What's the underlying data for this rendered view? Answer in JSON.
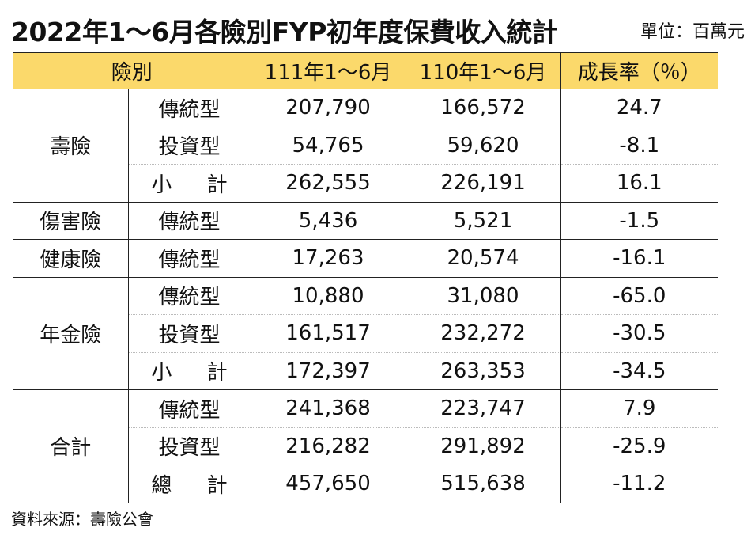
{
  "title": "2022年1～6月各險別FYP初年度保費收入統計",
  "unit": "單位：百萬元",
  "header": {
    "category": "險別",
    "col1": "111年1～6月",
    "col2": "110年1～6月",
    "col3": "成長率（％）"
  },
  "groups": [
    {
      "name": "壽險",
      "rows": [
        {
          "type": "傳統型",
          "v111": "207,790",
          "v110": "166,572",
          "growth": "24.7"
        },
        {
          "type": "投資型",
          "v111": "54,765",
          "v110": "59,620",
          "growth": "-8.1"
        },
        {
          "type": "小 計",
          "v111": "262,555",
          "v110": "226,191",
          "growth": "16.1"
        }
      ]
    },
    {
      "name": "傷害險",
      "rows": [
        {
          "type": "傳統型",
          "v111": "5,436",
          "v110": "5,521",
          "growth": "-1.5"
        }
      ]
    },
    {
      "name": "健康險",
      "rows": [
        {
          "type": "傳統型",
          "v111": "17,263",
          "v110": "20,574",
          "growth": "-16.1"
        }
      ]
    },
    {
      "name": "年金險",
      "rows": [
        {
          "type": "傳統型",
          "v111": "10,880",
          "v110": "31,080",
          "growth": "-65.0"
        },
        {
          "type": "投資型",
          "v111": "161,517",
          "v110": "232,272",
          "growth": "-30.5"
        },
        {
          "type": "小 計",
          "v111": "172,397",
          "v110": "263,353",
          "growth": "-34.5"
        }
      ]
    },
    {
      "name": "合計",
      "rows": [
        {
          "type": "傳統型",
          "v111": "241,368",
          "v110": "223,747",
          "growth": "7.9"
        },
        {
          "type": "投資型",
          "v111": "216,282",
          "v110": "291,892",
          "growth": "-25.9"
        },
        {
          "type": "總 計",
          "v111": "457,650",
          "v110": "515,638",
          "growth": "-11.2"
        }
      ]
    }
  ],
  "source": "資料來源：壽險公會",
  "colors": {
    "header_bg": "#fbd96b",
    "border": "#222222"
  }
}
